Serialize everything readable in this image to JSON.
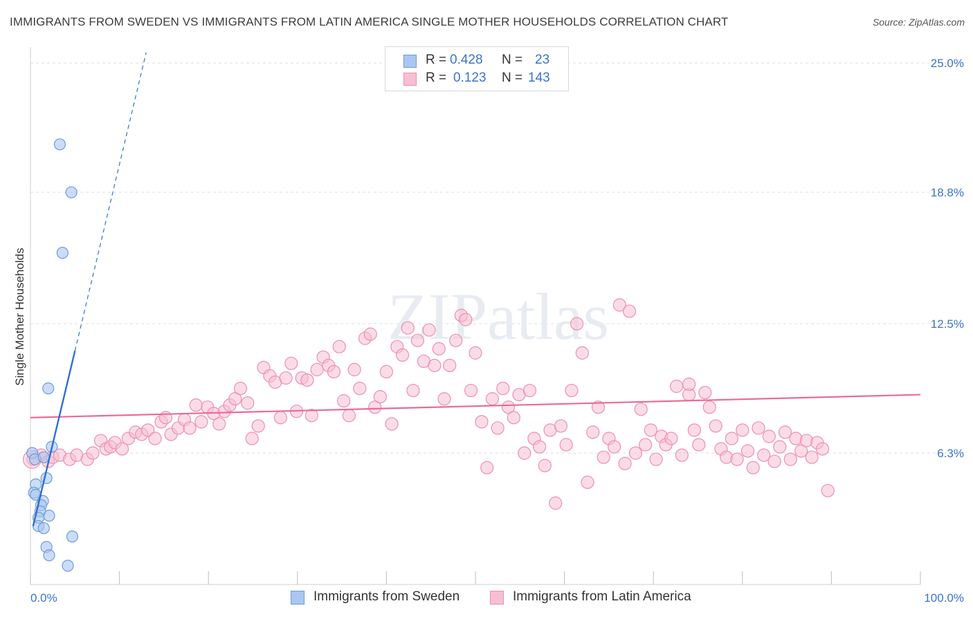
{
  "title": "IMMIGRANTS FROM SWEDEN VS IMMIGRANTS FROM LATIN AMERICA SINGLE MOTHER HOUSEHOLDS CORRELATION CHART",
  "source": "Source: ZipAtlas.com",
  "watermark": "ZIPatlas",
  "legend": {
    "r_label": "R =",
    "n_label": "N =",
    "entries": [
      {
        "r": "0.428",
        "n": "23"
      },
      {
        "r": "0.123",
        "n": "143"
      }
    ]
  },
  "colors": {
    "sweden_fill": "#a9c7f0",
    "sweden_stroke": "#6e9bd8",
    "sweden_line": "#2f6fd1",
    "latin_fill": "#f7bfd1",
    "latin_stroke": "#ec8fb0",
    "latin_line": "#e96b99",
    "tick_label": "#3a74c9",
    "grid": "#dcdcdc"
  },
  "chart_data": {
    "type": "scatter",
    "title": "IMMIGRANTS FROM SWEDEN VS IMMIGRANTS FROM LATIN AMERICA SINGLE MOTHER HOUSEHOLDS CORRELATION CHART",
    "xlabel": "",
    "ylabel": "Single Mother Households",
    "xlim": [
      0,
      100
    ],
    "ylim": [
      0,
      25.5
    ],
    "x_tick_labels": [
      "0.0%",
      "100.0%"
    ],
    "y_ticks": [
      6.3,
      12.5,
      18.8,
      25.0
    ],
    "y_tick_labels": [
      "6.3%",
      "12.5%",
      "18.8%",
      "25.0%"
    ],
    "grid": true,
    "legend_position": "top-center",
    "series": [
      {
        "name": "Immigrants from Sweden",
        "r": 0.428,
        "n": 23,
        "trend": {
          "x0": 0.3,
          "y0": 2.8,
          "x1": 5.0,
          "y1": 11.2,
          "dashed_to": {
            "x": 13.0,
            "y": 25.5
          }
        },
        "points": [
          [
            3.3,
            21.1
          ],
          [
            4.6,
            18.8
          ],
          [
            3.6,
            15.9
          ],
          [
            2.0,
            9.4
          ],
          [
            2.4,
            6.6
          ],
          [
            0.2,
            6.3
          ],
          [
            0.5,
            6.0
          ],
          [
            1.5,
            6.1
          ],
          [
            1.8,
            5.1
          ],
          [
            0.6,
            4.8
          ],
          [
            0.4,
            4.4
          ],
          [
            0.6,
            4.3
          ],
          [
            1.4,
            4.0
          ],
          [
            1.2,
            3.8
          ],
          [
            1.1,
            3.5
          ],
          [
            2.1,
            3.3
          ],
          [
            0.9,
            3.2
          ],
          [
            0.9,
            2.8
          ],
          [
            1.5,
            2.7
          ],
          [
            4.7,
            2.3
          ],
          [
            1.8,
            1.8
          ],
          [
            2.1,
            1.4
          ],
          [
            4.2,
            0.9
          ]
        ]
      },
      {
        "name": "Immigrants from Latin America",
        "r": 0.123,
        "n": 143,
        "trend": {
          "x0": 0,
          "y0": 8.0,
          "x1": 100,
          "y1": 9.1
        },
        "points": [
          [
            0.3,
            6.0
          ],
          [
            1.2,
            6.2
          ],
          [
            2.0,
            5.9
          ],
          [
            2.5,
            6.1
          ],
          [
            3.3,
            6.2
          ],
          [
            4.4,
            6.0
          ],
          [
            5.2,
            6.2
          ],
          [
            6.4,
            6.0
          ],
          [
            7.0,
            6.3
          ],
          [
            7.9,
            6.9
          ],
          [
            8.5,
            6.5
          ],
          [
            9.0,
            6.6
          ],
          [
            9.5,
            6.8
          ],
          [
            10.3,
            6.5
          ],
          [
            11.0,
            7.0
          ],
          [
            11.8,
            7.3
          ],
          [
            12.5,
            7.2
          ],
          [
            13.2,
            7.4
          ],
          [
            14.0,
            7.0
          ],
          [
            14.7,
            7.8
          ],
          [
            15.2,
            8.0
          ],
          [
            15.8,
            7.2
          ],
          [
            16.6,
            7.5
          ],
          [
            17.3,
            7.9
          ],
          [
            17.9,
            7.5
          ],
          [
            18.6,
            8.6
          ],
          [
            19.2,
            7.8
          ],
          [
            19.9,
            8.5
          ],
          [
            20.6,
            8.2
          ],
          [
            21.2,
            7.7
          ],
          [
            21.8,
            8.3
          ],
          [
            22.4,
            8.6
          ],
          [
            23.0,
            8.9
          ],
          [
            23.6,
            9.4
          ],
          [
            24.4,
            8.7
          ],
          [
            24.9,
            7.0
          ],
          [
            25.6,
            7.6
          ],
          [
            26.2,
            10.4
          ],
          [
            26.9,
            10.0
          ],
          [
            27.5,
            9.7
          ],
          [
            28.1,
            8.0
          ],
          [
            28.7,
            9.9
          ],
          [
            29.3,
            10.6
          ],
          [
            29.9,
            8.3
          ],
          [
            30.5,
            9.9
          ],
          [
            31.1,
            9.8
          ],
          [
            31.6,
            8.1
          ],
          [
            32.2,
            10.3
          ],
          [
            32.9,
            10.9
          ],
          [
            33.5,
            10.5
          ],
          [
            34.1,
            10.2
          ],
          [
            34.7,
            11.4
          ],
          [
            35.2,
            8.8
          ],
          [
            35.8,
            8.1
          ],
          [
            36.4,
            10.3
          ],
          [
            37.0,
            9.4
          ],
          [
            37.6,
            11.8
          ],
          [
            38.2,
            12.0
          ],
          [
            38.7,
            8.5
          ],
          [
            39.3,
            9.0
          ],
          [
            40.0,
            10.2
          ],
          [
            40.6,
            7.7
          ],
          [
            41.2,
            11.4
          ],
          [
            41.8,
            11.0
          ],
          [
            42.4,
            12.3
          ],
          [
            43.0,
            9.3
          ],
          [
            43.5,
            11.7
          ],
          [
            44.2,
            10.7
          ],
          [
            44.8,
            12.2
          ],
          [
            45.4,
            10.5
          ],
          [
            45.9,
            11.3
          ],
          [
            46.5,
            8.9
          ],
          [
            47.1,
            10.5
          ],
          [
            47.8,
            11.7
          ],
          [
            48.4,
            12.9
          ],
          [
            48.9,
            12.7
          ],
          [
            49.5,
            9.3
          ],
          [
            50.0,
            11.1
          ],
          [
            50.7,
            7.8
          ],
          [
            51.3,
            5.6
          ],
          [
            51.9,
            8.9
          ],
          [
            52.5,
            7.5
          ],
          [
            53.1,
            9.4
          ],
          [
            53.7,
            8.5
          ],
          [
            54.3,
            8.0
          ],
          [
            54.9,
            9.1
          ],
          [
            55.5,
            6.3
          ],
          [
            56.1,
            9.3
          ],
          [
            56.6,
            7.0
          ],
          [
            57.2,
            6.6
          ],
          [
            57.8,
            5.7
          ],
          [
            58.4,
            7.4
          ],
          [
            59.0,
            3.9
          ],
          [
            59.6,
            7.6
          ],
          [
            60.2,
            6.7
          ],
          [
            60.8,
            9.3
          ],
          [
            61.4,
            12.5
          ],
          [
            62.0,
            11.1
          ],
          [
            62.6,
            4.9
          ],
          [
            63.2,
            7.3
          ],
          [
            63.8,
            8.5
          ],
          [
            64.4,
            6.1
          ],
          [
            65.0,
            7.0
          ],
          [
            65.6,
            6.6
          ],
          [
            66.2,
            13.4
          ],
          [
            66.8,
            5.8
          ],
          [
            67.3,
            13.1
          ],
          [
            68.0,
            6.3
          ],
          [
            68.6,
            8.4
          ],
          [
            69.1,
            6.7
          ],
          [
            69.7,
            7.4
          ],
          [
            70.3,
            6.0
          ],
          [
            70.9,
            7.1
          ],
          [
            71.4,
            6.7
          ],
          [
            72.0,
            7.0
          ],
          [
            72.6,
            9.5
          ],
          [
            73.2,
            6.2
          ],
          [
            74.0,
            9.1
          ],
          [
            74.6,
            7.4
          ],
          [
            75.1,
            6.7
          ],
          [
            75.8,
            9.2
          ],
          [
            76.3,
            8.5
          ],
          [
            77.0,
            7.6
          ],
          [
            77.6,
            6.5
          ],
          [
            78.2,
            6.1
          ],
          [
            78.8,
            7.0
          ],
          [
            79.4,
            6.0
          ],
          [
            80.0,
            7.4
          ],
          [
            80.6,
            6.4
          ],
          [
            81.2,
            5.6
          ],
          [
            81.8,
            7.5
          ],
          [
            82.4,
            6.2
          ],
          [
            83.0,
            7.1
          ],
          [
            83.6,
            5.9
          ],
          [
            84.2,
            6.6
          ],
          [
            84.8,
            7.3
          ],
          [
            85.4,
            6.0
          ],
          [
            86.0,
            7.0
          ],
          [
            86.6,
            6.4
          ],
          [
            87.2,
            6.9
          ],
          [
            87.8,
            6.1
          ],
          [
            88.4,
            6.8
          ],
          [
            89.0,
            6.5
          ],
          [
            89.6,
            4.5
          ],
          [
            74.0,
            9.6
          ]
        ]
      }
    ]
  },
  "bottom_legend": [
    "Immigrants from Sweden",
    "Immigrants from Latin America"
  ]
}
